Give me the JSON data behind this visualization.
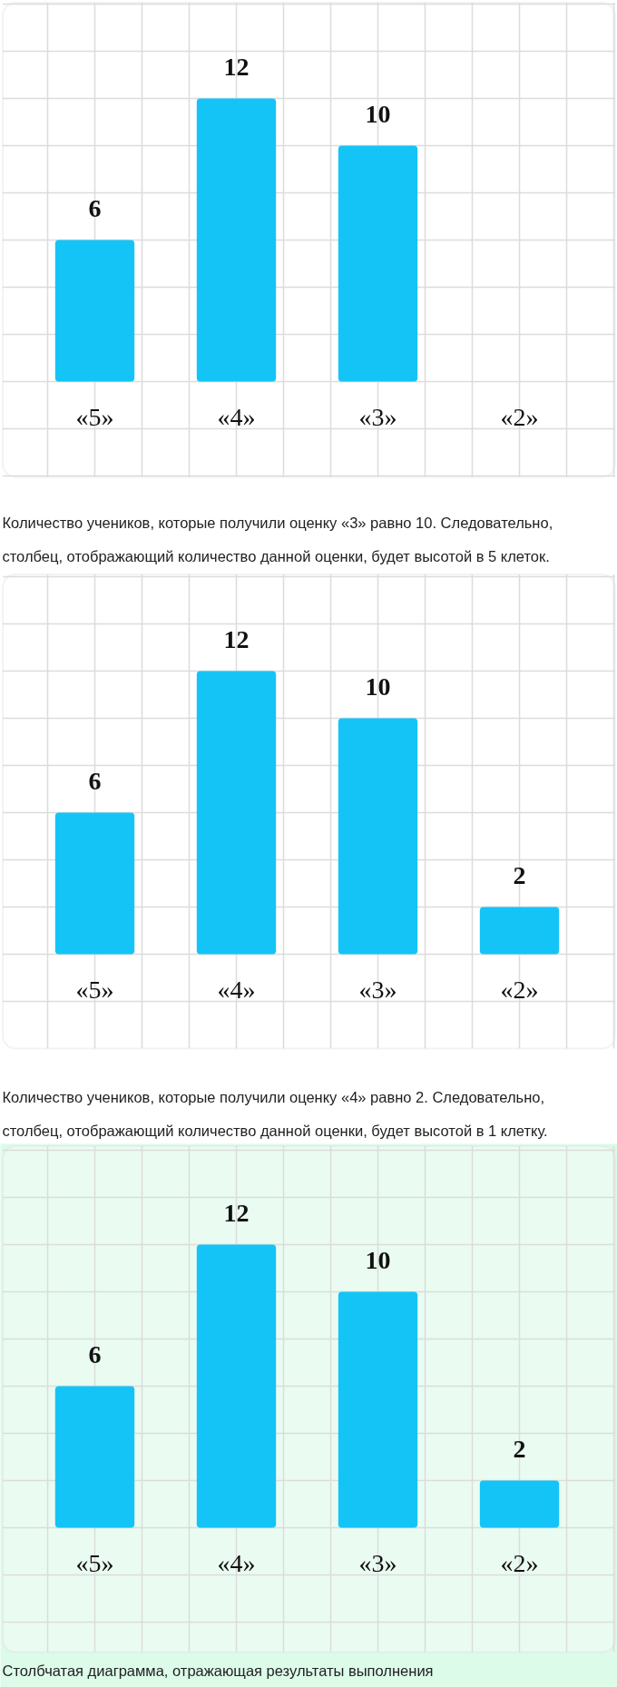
{
  "chart_data": [
    {
      "type": "bar",
      "categories": [
        "«5»",
        "«4»",
        "«3»",
        "«2»"
      ],
      "values": [
        6,
        12,
        10,
        null
      ],
      "color": "#14c4f7",
      "data_labels": true,
      "grid": true,
      "tick_labels": "x",
      "yticks": [
        {
          "value": 0,
          "label": null
        },
        {
          "value": 2,
          "label": null
        },
        {
          "value": 4,
          "label": null
        },
        {
          "value": 6,
          "label": null
        },
        {
          "value": 8,
          "label": null
        },
        {
          "value": 10,
          "label": null
        },
        {
          "value": 12,
          "label": null
        },
        {
          "value": 14,
          "label": null
        },
        {
          "value": 16,
          "label": null
        }
      ],
      "annotations": [
        "Количество учеников, которые получили оценку «3» равно 10. Следовательно,",
        "столбец, отображающий количество данной оценки, будет высотой в 5 клеток."
      ]
    },
    {
      "type": "bar",
      "categories": [
        "«5»",
        "«4»",
        "«3»",
        "«2»"
      ],
      "values": [
        6,
        12,
        10,
        2
      ],
      "color": "#14c4f7",
      "data_labels": true,
      "grid": true,
      "tick_labels": "x",
      "yticks": [
        {
          "value": 0,
          "label": null
        },
        {
          "value": 2,
          "label": null
        },
        {
          "value": 4,
          "label": null
        },
        {
          "value": 6,
          "label": null
        },
        {
          "value": 8,
          "label": null
        },
        {
          "value": 10,
          "label": null
        },
        {
          "value": 12,
          "label": null
        },
        {
          "value": 14,
          "label": null
        },
        {
          "value": 16,
          "label": null
        }
      ],
      "annotations": [
        "Количество учеников, которые получили оценку «4» равно 2. Следовательно,",
        "столбец, отображающий количество данной оценки, будет высотой в 1 клетку."
      ]
    },
    {
      "type": "bar",
      "categories": [
        "«5»",
        "«4»",
        "«3»",
        "«2»"
      ],
      "values": [
        6,
        12,
        10,
        2
      ],
      "color": "#14c4f7",
      "data_labels": true,
      "grid": true,
      "tick_labels": "x",
      "yticks": [
        {
          "value": 0,
          "label": null
        },
        {
          "value": 2,
          "label": null
        },
        {
          "value": 4,
          "label": null
        },
        {
          "value": 6,
          "label": null
        },
        {
          "value": 8,
          "label": null
        },
        {
          "value": 10,
          "label": null
        },
        {
          "value": 12,
          "label": null
        },
        {
          "value": 14,
          "label": null
        },
        {
          "value": 16,
          "label": null
        }
      ],
      "annotations": [
        "Столбчатая диаграмма, отражающая результаты выполнения"
      ]
    }
  ]
}
